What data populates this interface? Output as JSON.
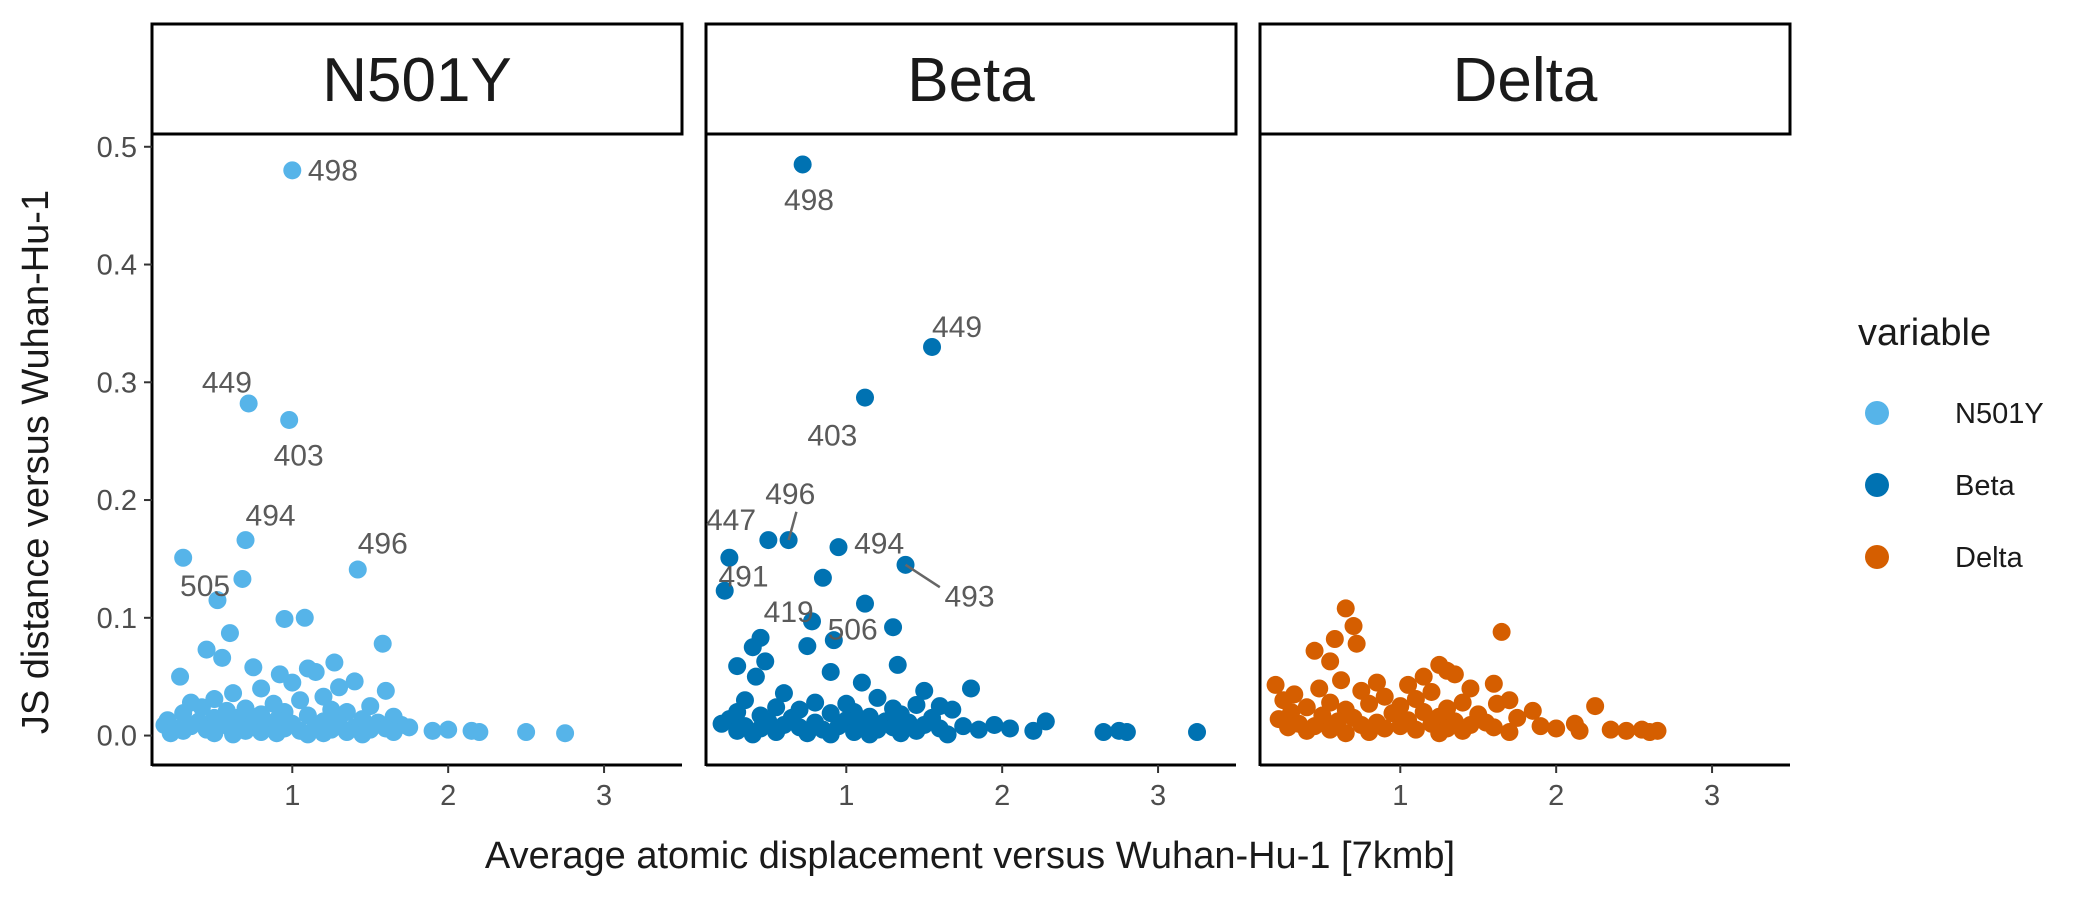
{
  "chart_data": {
    "type": "scatter",
    "xlabel": "Average atomic displacement versus Wuhan-Hu-1 [7kmb]",
    "ylabel": "JS distance versus Wuhan-Hu-1",
    "xlim": [
      0.1,
      3.5
    ],
    "ylim": [
      -0.025,
      0.51
    ],
    "x_ticks": [
      1,
      2,
      3
    ],
    "y_ticks": [
      0.0,
      0.1,
      0.2,
      0.3,
      0.4,
      0.5
    ],
    "y_tick_labels": [
      "0.0",
      "0.1",
      "0.2",
      "0.3",
      "0.4",
      "0.5"
    ],
    "grid": false,
    "legend": {
      "title": "variable",
      "position": "right",
      "entries": [
        {
          "name": "N501Y",
          "color": "#56B4E9"
        },
        {
          "name": "Beta",
          "color": "#0072B2"
        },
        {
          "name": "Delta",
          "color": "#D55E00"
        }
      ]
    },
    "panels": [
      {
        "name": "N501Y",
        "color": "#56B4E9",
        "points": [
          [
            1.0,
            0.48
          ],
          [
            0.72,
            0.282
          ],
          [
            0.98,
            0.268
          ],
          [
            0.7,
            0.166
          ],
          [
            1.42,
            0.141
          ],
          [
            0.3,
            0.151
          ],
          [
            0.68,
            0.133
          ],
          [
            0.52,
            0.115
          ],
          [
            0.95,
            0.099
          ],
          [
            1.08,
            0.1
          ],
          [
            0.6,
            0.087
          ],
          [
            1.58,
            0.078
          ],
          [
            0.45,
            0.073
          ],
          [
            0.55,
            0.066
          ],
          [
            0.75,
            0.058
          ],
          [
            1.1,
            0.057
          ],
          [
            1.15,
            0.054
          ],
          [
            0.92,
            0.052
          ],
          [
            1.27,
            0.062
          ],
          [
            0.28,
            0.05
          ],
          [
            1.4,
            0.046
          ],
          [
            1.0,
            0.045
          ],
          [
            1.3,
            0.041
          ],
          [
            0.8,
            0.04
          ],
          [
            1.6,
            0.038
          ],
          [
            0.62,
            0.036
          ],
          [
            1.2,
            0.033
          ],
          [
            0.5,
            0.031
          ],
          [
            1.05,
            0.03
          ],
          [
            0.35,
            0.028
          ],
          [
            0.88,
            0.027
          ],
          [
            1.5,
            0.025
          ],
          [
            0.42,
            0.024
          ],
          [
            0.7,
            0.023
          ],
          [
            1.25,
            0.022
          ],
          [
            0.58,
            0.021
          ],
          [
            0.95,
            0.02
          ],
          [
            1.35,
            0.02
          ],
          [
            0.3,
            0.019
          ],
          [
            0.8,
            0.018
          ],
          [
            1.1,
            0.017
          ],
          [
            1.65,
            0.016
          ],
          [
            0.5,
            0.015
          ],
          [
            0.65,
            0.015
          ],
          [
            1.45,
            0.014
          ],
          [
            0.2,
            0.013
          ],
          [
            0.9,
            0.013
          ],
          [
            1.2,
            0.012
          ],
          [
            0.4,
            0.012
          ],
          [
            1.55,
            0.011
          ],
          [
            0.75,
            0.011
          ],
          [
            1.0,
            0.01
          ],
          [
            1.3,
            0.01
          ],
          [
            0.55,
            0.009
          ],
          [
            0.18,
            0.009
          ],
          [
            1.7,
            0.009
          ],
          [
            0.85,
            0.008
          ],
          [
            1.15,
            0.008
          ],
          [
            0.35,
            0.008
          ],
          [
            1.4,
            0.007
          ],
          [
            0.6,
            0.007
          ],
          [
            1.6,
            0.006
          ],
          [
            0.25,
            0.006
          ],
          [
            0.95,
            0.006
          ],
          [
            1.25,
            0.005
          ],
          [
            0.45,
            0.005
          ],
          [
            1.5,
            0.005
          ],
          [
            0.7,
            0.004
          ],
          [
            1.05,
            0.004
          ],
          [
            0.3,
            0.004
          ],
          [
            1.35,
            0.003
          ],
          [
            0.8,
            0.003
          ],
          [
            1.65,
            0.003
          ],
          [
            0.5,
            0.002
          ],
          [
            1.2,
            0.002
          ],
          [
            0.22,
            0.002
          ],
          [
            0.9,
            0.002
          ],
          [
            1.45,
            0.001
          ],
          [
            0.62,
            0.001
          ],
          [
            1.1,
            0.001
          ],
          [
            1.75,
            0.007
          ],
          [
            1.9,
            0.004
          ],
          [
            2.0,
            0.005
          ],
          [
            2.15,
            0.004
          ],
          [
            2.2,
            0.003
          ],
          [
            2.5,
            0.003
          ],
          [
            2.75,
            0.002
          ]
        ],
        "labels": [
          {
            "text": "498",
            "at": [
              1.0,
              0.48
            ],
            "pos": [
              1.1,
              0.48
            ],
            "anchor": "start"
          },
          {
            "text": "449",
            "at": [
              0.72,
              0.282
            ],
            "pos": [
              0.42,
              0.3
            ],
            "anchor": "start"
          },
          {
            "text": "403",
            "at": [
              0.98,
              0.268
            ],
            "pos": [
              0.88,
              0.238
            ],
            "anchor": "start"
          },
          {
            "text": "494",
            "at": [
              0.7,
              0.166
            ],
            "pos": [
              0.7,
              0.187
            ],
            "anchor": "start"
          },
          {
            "text": "496",
            "at": [
              1.42,
              0.141
            ],
            "pos": [
              1.42,
              0.163
            ],
            "anchor": "start"
          },
          {
            "text": "505",
            "at": [
              0.3,
              0.151
            ],
            "pos": [
              0.28,
              0.127
            ],
            "anchor": "start"
          }
        ]
      },
      {
        "name": "Beta",
        "color": "#0072B2",
        "points": [
          [
            0.72,
            0.485
          ],
          [
            1.55,
            0.33
          ],
          [
            1.12,
            0.287
          ],
          [
            0.63,
            0.166
          ],
          [
            0.5,
            0.166
          ],
          [
            0.95,
            0.16
          ],
          [
            0.25,
            0.151
          ],
          [
            1.38,
            0.145
          ],
          [
            0.22,
            0.123
          ],
          [
            0.85,
            0.134
          ],
          [
            1.12,
            0.112
          ],
          [
            0.78,
            0.097
          ],
          [
            1.3,
            0.092
          ],
          [
            0.45,
            0.083
          ],
          [
            0.92,
            0.081
          ],
          [
            0.4,
            0.075
          ],
          [
            0.75,
            0.076
          ],
          [
            0.48,
            0.063
          ],
          [
            0.3,
            0.059
          ],
          [
            1.33,
            0.06
          ],
          [
            0.9,
            0.054
          ],
          [
            0.42,
            0.05
          ],
          [
            1.1,
            0.045
          ],
          [
            1.5,
            0.038
          ],
          [
            1.8,
            0.04
          ],
          [
            0.6,
            0.036
          ],
          [
            1.2,
            0.032
          ],
          [
            0.35,
            0.03
          ],
          [
            1.6,
            0.025
          ],
          [
            0.8,
            0.028
          ],
          [
            1.0,
            0.027
          ],
          [
            1.45,
            0.026
          ],
          [
            0.55,
            0.024
          ],
          [
            1.3,
            0.023
          ],
          [
            0.7,
            0.022
          ],
          [
            1.68,
            0.022
          ],
          [
            0.3,
            0.02
          ],
          [
            1.05,
            0.02
          ],
          [
            0.9,
            0.019
          ],
          [
            1.35,
            0.018
          ],
          [
            0.45,
            0.017
          ],
          [
            1.15,
            0.016
          ],
          [
            0.65,
            0.015
          ],
          [
            1.55,
            0.015
          ],
          [
            0.25,
            0.014
          ],
          [
            1.0,
            0.013
          ],
          [
            1.25,
            0.012
          ],
          [
            0.5,
            0.012
          ],
          [
            1.4,
            0.011
          ],
          [
            0.8,
            0.011
          ],
          [
            0.2,
            0.01
          ],
          [
            1.1,
            0.01
          ],
          [
            0.6,
            0.009
          ],
          [
            1.5,
            0.009
          ],
          [
            0.35,
            0.008
          ],
          [
            0.95,
            0.008
          ],
          [
            1.3,
            0.007
          ],
          [
            0.7,
            0.007
          ],
          [
            1.6,
            0.006
          ],
          [
            0.45,
            0.006
          ],
          [
            1.2,
            0.005
          ],
          [
            0.85,
            0.005
          ],
          [
            0.3,
            0.004
          ],
          [
            1.45,
            0.004
          ],
          [
            1.05,
            0.003
          ],
          [
            0.55,
            0.003
          ],
          [
            1.35,
            0.002
          ],
          [
            0.75,
            0.002
          ],
          [
            0.4,
            0.001
          ],
          [
            1.15,
            0.001
          ],
          [
            1.65,
            0.001
          ],
          [
            0.9,
            0.001
          ],
          [
            1.75,
            0.008
          ],
          [
            1.85,
            0.005
          ],
          [
            1.95,
            0.009
          ],
          [
            2.05,
            0.006
          ],
          [
            2.2,
            0.004
          ],
          [
            2.28,
            0.012
          ],
          [
            2.65,
            0.003
          ],
          [
            2.75,
            0.004
          ],
          [
            2.8,
            0.003
          ],
          [
            3.25,
            0.003
          ]
        ],
        "labels": [
          {
            "text": "498",
            "at": [
              0.72,
              0.485
            ],
            "pos": [
              0.6,
              0.455
            ],
            "anchor": "start"
          },
          {
            "text": "449",
            "at": [
              1.55,
              0.33
            ],
            "pos": [
              1.55,
              0.347
            ],
            "anchor": "start"
          },
          {
            "text": "403",
            "at": [
              1.12,
              0.287
            ],
            "pos": [
              0.75,
              0.255
            ],
            "anchor": "start"
          },
          {
            "text": "496",
            "at": [
              0.63,
              0.166
            ],
            "pos": [
              0.48,
              0.205
            ],
            "anchor": "start",
            "leader": [
              0.68,
              0.19
            ]
          },
          {
            "text": "447",
            "at": [
              0.5,
              0.166
            ],
            "pos": [
              0.1,
              0.183
            ],
            "anchor": "start"
          },
          {
            "text": "494",
            "at": [
              0.95,
              0.16
            ],
            "pos": [
              1.05,
              0.163
            ],
            "anchor": "start"
          },
          {
            "text": "493",
            "at": [
              1.38,
              0.145
            ],
            "pos": [
              1.63,
              0.118
            ],
            "anchor": "start",
            "leader": [
              1.6,
              0.126
            ]
          },
          {
            "text": "491",
            "at": [
              0.25,
              0.151
            ],
            "pos": [
              0.18,
              0.135
            ],
            "anchor": "start"
          },
          {
            "text": "419",
            "at": [
              0.78,
              0.097
            ],
            "pos": [
              0.47,
              0.105
            ],
            "anchor": "start"
          },
          {
            "text": "506",
            "at": [
              0.92,
              0.081
            ],
            "pos": [
              0.88,
              0.09
            ],
            "anchor": "start"
          }
        ]
      },
      {
        "name": "Delta",
        "color": "#D55E00",
        "points": [
          [
            0.65,
            0.108
          ],
          [
            0.7,
            0.093
          ],
          [
            0.58,
            0.082
          ],
          [
            0.72,
            0.078
          ],
          [
            1.65,
            0.088
          ],
          [
            0.45,
            0.072
          ],
          [
            0.55,
            0.063
          ],
          [
            1.25,
            0.06
          ],
          [
            1.3,
            0.055
          ],
          [
            1.15,
            0.05
          ],
          [
            1.35,
            0.052
          ],
          [
            0.62,
            0.047
          ],
          [
            0.85,
            0.045
          ],
          [
            1.05,
            0.043
          ],
          [
            0.2,
            0.043
          ],
          [
            1.6,
            0.044
          ],
          [
            1.45,
            0.04
          ],
          [
            0.48,
            0.04
          ],
          [
            0.75,
            0.038
          ],
          [
            1.2,
            0.037
          ],
          [
            0.32,
            0.035
          ],
          [
            0.9,
            0.033
          ],
          [
            1.7,
            0.03
          ],
          [
            1.1,
            0.031
          ],
          [
            0.25,
            0.03
          ],
          [
            0.55,
            0.028
          ],
          [
            1.4,
            0.028
          ],
          [
            0.8,
            0.027
          ],
          [
            1.62,
            0.027
          ],
          [
            2.25,
            0.025
          ],
          [
            1.0,
            0.025
          ],
          [
            0.4,
            0.024
          ],
          [
            1.3,
            0.023
          ],
          [
            0.65,
            0.022
          ],
          [
            1.85,
            0.021
          ],
          [
            0.3,
            0.02
          ],
          [
            1.15,
            0.02
          ],
          [
            0.95,
            0.019
          ],
          [
            1.5,
            0.018
          ],
          [
            0.5,
            0.017
          ],
          [
            1.25,
            0.016
          ],
          [
            0.7,
            0.015
          ],
          [
            1.75,
            0.015
          ],
          [
            0.22,
            0.014
          ],
          [
            1.05,
            0.013
          ],
          [
            0.6,
            0.012
          ],
          [
            1.35,
            0.012
          ],
          [
            0.85,
            0.011
          ],
          [
            1.55,
            0.011
          ],
          [
            0.35,
            0.01
          ],
          [
            1.2,
            0.01
          ],
          [
            0.75,
            0.009
          ],
          [
            1.45,
            0.009
          ],
          [
            0.45,
            0.008
          ],
          [
            1.0,
            0.008
          ],
          [
            0.28,
            0.007
          ],
          [
            1.6,
            0.007
          ],
          [
            0.9,
            0.006
          ],
          [
            1.3,
            0.006
          ],
          [
            0.55,
            0.005
          ],
          [
            1.1,
            0.005
          ],
          [
            0.4,
            0.004
          ],
          [
            1.4,
            0.004
          ],
          [
            0.8,
            0.003
          ],
          [
            1.7,
            0.003
          ],
          [
            0.65,
            0.002
          ],
          [
            1.25,
            0.002
          ],
          [
            1.9,
            0.008
          ],
          [
            2.0,
            0.006
          ],
          [
            2.12,
            0.01
          ],
          [
            2.15,
            0.004
          ],
          [
            2.35,
            0.005
          ],
          [
            2.45,
            0.004
          ],
          [
            2.55,
            0.005
          ],
          [
            2.6,
            0.003
          ],
          [
            2.65,
            0.004
          ]
        ],
        "labels": []
      }
    ]
  }
}
